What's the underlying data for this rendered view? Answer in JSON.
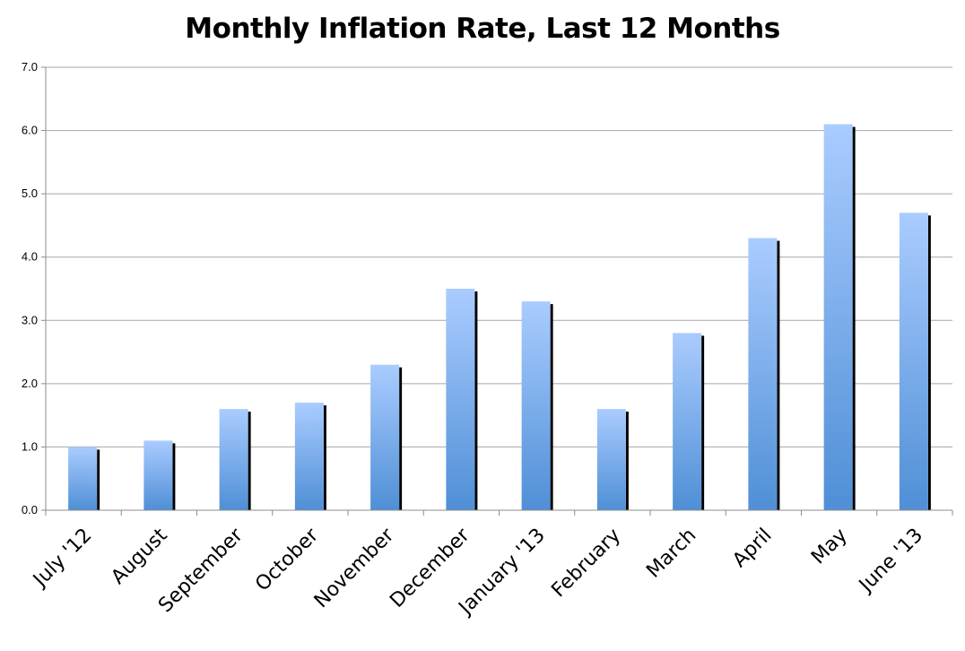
{
  "chart_data": {
    "type": "bar",
    "title": "Monthly Inflation Rate, Last 12 Months",
    "categories": [
      "July '12",
      "August",
      "September",
      "October",
      "November",
      "December",
      "January '13",
      "February",
      "March",
      "April",
      "May",
      "June '13"
    ],
    "values": [
      1.0,
      1.1,
      1.6,
      1.7,
      2.3,
      3.5,
      3.3,
      1.6,
      2.8,
      4.3,
      6.1,
      4.7
    ],
    "yticks": [
      "0.0",
      "1.0",
      "2.0",
      "3.0",
      "4.0",
      "5.0",
      "6.0",
      "7.0"
    ],
    "ylim": [
      0,
      7
    ],
    "grid": true,
    "legend": "none",
    "colors": {
      "bar_top": "#aaccff",
      "bar_bottom": "#4f8fd6",
      "shadow": "#000000",
      "grid": "#a6a6a6",
      "axis": "#8c8c8c"
    }
  }
}
